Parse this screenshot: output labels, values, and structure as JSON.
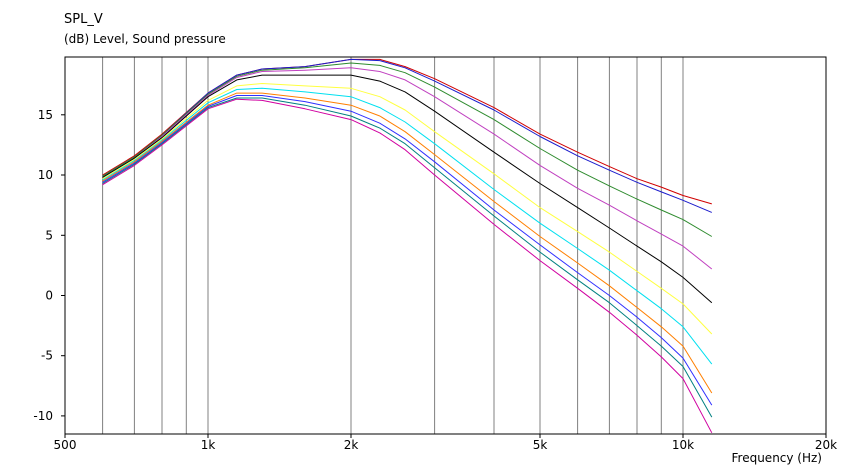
{
  "chart_data": {
    "type": "line",
    "title": "SPL_V",
    "ylabel": "(dB)  Level, Sound pressure",
    "xlabel": "Frequency  (Hz)",
    "xscale": "log",
    "xlim": [
      500,
      20000
    ],
    "ylim": [
      -11.5,
      19.8
    ],
    "x_ticks": [
      500,
      1000,
      2000,
      5000,
      10000,
      20000
    ],
    "x_tick_labels": [
      "500",
      "1k",
      "2k",
      "5k",
      "10k",
      "20k"
    ],
    "y_ticks": [
      15,
      10,
      5,
      0,
      -5,
      -10
    ],
    "y_tick_labels": [
      "15",
      "10",
      "5",
      "0",
      "-5",
      "-10"
    ],
    "grid": "vertical",
    "legend": "none",
    "x": [
      600,
      700,
      800,
      1000,
      1150,
      1300,
      1600,
      2000,
      2300,
      2600,
      3000,
      4000,
      5000,
      6000,
      7000,
      8000,
      9000,
      10000,
      11500
    ],
    "series": [
      {
        "color": "#d00000",
        "values": [
          10.0,
          11.6,
          13.4,
          16.8,
          18.3,
          18.8,
          19.0,
          19.6,
          19.6,
          19.0,
          18.0,
          15.6,
          13.4,
          11.9,
          10.7,
          9.7,
          9.0,
          8.3,
          7.6
        ]
      },
      {
        "color": "#1c1ccc",
        "values": [
          9.9,
          11.5,
          13.3,
          16.8,
          18.3,
          18.8,
          19.0,
          19.6,
          19.5,
          18.9,
          17.8,
          15.4,
          13.2,
          11.6,
          10.4,
          9.4,
          8.6,
          7.9,
          6.9
        ]
      },
      {
        "color": "#2e8b2e",
        "values": [
          9.9,
          11.5,
          13.3,
          16.7,
          18.2,
          18.7,
          18.9,
          19.3,
          19.1,
          18.5,
          17.3,
          14.6,
          12.2,
          10.4,
          9.1,
          8.0,
          7.1,
          6.3,
          4.9
        ]
      },
      {
        "color": "#c040c0",
        "values": [
          9.8,
          11.4,
          13.2,
          16.6,
          18.1,
          18.6,
          18.7,
          18.9,
          18.6,
          17.9,
          16.5,
          13.4,
          10.8,
          8.9,
          7.5,
          6.2,
          5.1,
          4.1,
          2.2
        ]
      },
      {
        "color": "#000000",
        "values": [
          9.8,
          11.4,
          13.1,
          16.5,
          17.9,
          18.3,
          18.3,
          18.3,
          17.8,
          16.9,
          15.3,
          11.9,
          9.3,
          7.3,
          5.6,
          4.1,
          2.8,
          1.5,
          -0.6
        ]
      },
      {
        "color": "#ffff40",
        "values": [
          9.7,
          11.3,
          13.0,
          16.2,
          17.4,
          17.6,
          17.4,
          17.2,
          16.5,
          15.4,
          13.6,
          10.1,
          7.3,
          5.3,
          3.6,
          2.0,
          0.6,
          -0.7,
          -3.2
        ]
      },
      {
        "color": "#00e0f0",
        "values": [
          9.6,
          11.2,
          12.9,
          16.0,
          17.1,
          17.2,
          16.9,
          16.5,
          15.6,
          14.4,
          12.6,
          8.8,
          6.0,
          3.9,
          2.1,
          0.4,
          -1.1,
          -2.6,
          -5.7
        ]
      },
      {
        "color": "#ff7f00",
        "values": [
          9.5,
          11.1,
          12.8,
          15.8,
          16.8,
          16.8,
          16.4,
          15.8,
          14.9,
          13.6,
          11.7,
          7.8,
          4.9,
          2.7,
          0.8,
          -1.0,
          -2.6,
          -4.2,
          -8.1
        ]
      },
      {
        "color": "#3030ff",
        "values": [
          9.4,
          11.0,
          12.7,
          15.7,
          16.6,
          16.6,
          16.1,
          15.3,
          14.3,
          13.0,
          11.1,
          7.1,
          4.2,
          1.9,
          0.0,
          -1.8,
          -3.5,
          -5.2,
          -9.1
        ]
      },
      {
        "color": "#008080",
        "values": [
          9.3,
          10.9,
          12.6,
          15.6,
          16.4,
          16.4,
          15.8,
          14.9,
          13.9,
          12.6,
          10.6,
          6.6,
          3.6,
          1.3,
          -0.6,
          -2.5,
          -4.2,
          -5.9,
          -10.1
        ]
      },
      {
        "color": "#d000a0",
        "values": [
          9.2,
          10.8,
          12.5,
          15.5,
          16.3,
          16.2,
          15.5,
          14.6,
          13.5,
          12.1,
          10.0,
          5.9,
          2.9,
          0.6,
          -1.4,
          -3.3,
          -5.1,
          -6.9,
          -11.4
        ]
      }
    ]
  }
}
